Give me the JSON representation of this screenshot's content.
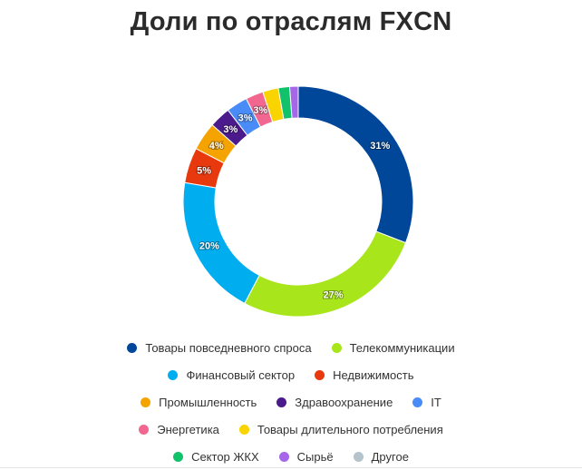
{
  "chart_data": {
    "type": "pie",
    "variant": "donut",
    "title": "Доли по отраслям FXCN",
    "legend_position": "bottom",
    "slices": [
      {
        "name": "Товары повседневного спроса",
        "value": 31,
        "label": "31%",
        "color": "#00479a"
      },
      {
        "name": "Телекоммуникации",
        "value": 27,
        "label": "27%",
        "color": "#a8e61b"
      },
      {
        "name": "Финансовый сектор",
        "value": 20,
        "label": "20%",
        "color": "#00aef0"
      },
      {
        "name": "Недвижимость",
        "value": 5,
        "label": "5%",
        "color": "#e8380d"
      },
      {
        "name": "Промышленность",
        "value": 4,
        "label": "4%",
        "color": "#f5a300"
      },
      {
        "name": "Здравоохранение",
        "value": 3,
        "label": "3%",
        "color": "#4b1a8c"
      },
      {
        "name": "IT",
        "value": 3,
        "label": "3%",
        "color": "#4a8cf7"
      },
      {
        "name": "Энергетика",
        "value": 2.5,
        "label": "3%",
        "color": "#f2678f"
      },
      {
        "name": "Товары длительного потребления",
        "value": 2.2,
        "label": "",
        "color": "#f9d400"
      },
      {
        "name": "Сектор ЖКХ",
        "value": 1.6,
        "label": "",
        "color": "#12c26b"
      },
      {
        "name": "Сырьё",
        "value": 1.2,
        "label": "",
        "color": "#a566e8"
      },
      {
        "name": "Другое",
        "value": 0,
        "label": "",
        "color": "#b4c3cc"
      }
    ]
  },
  "legend_rows": [
    [
      0,
      1
    ],
    [
      2,
      3
    ],
    [
      4,
      5,
      6
    ],
    [
      7,
      8
    ],
    [
      9,
      10,
      11
    ]
  ]
}
